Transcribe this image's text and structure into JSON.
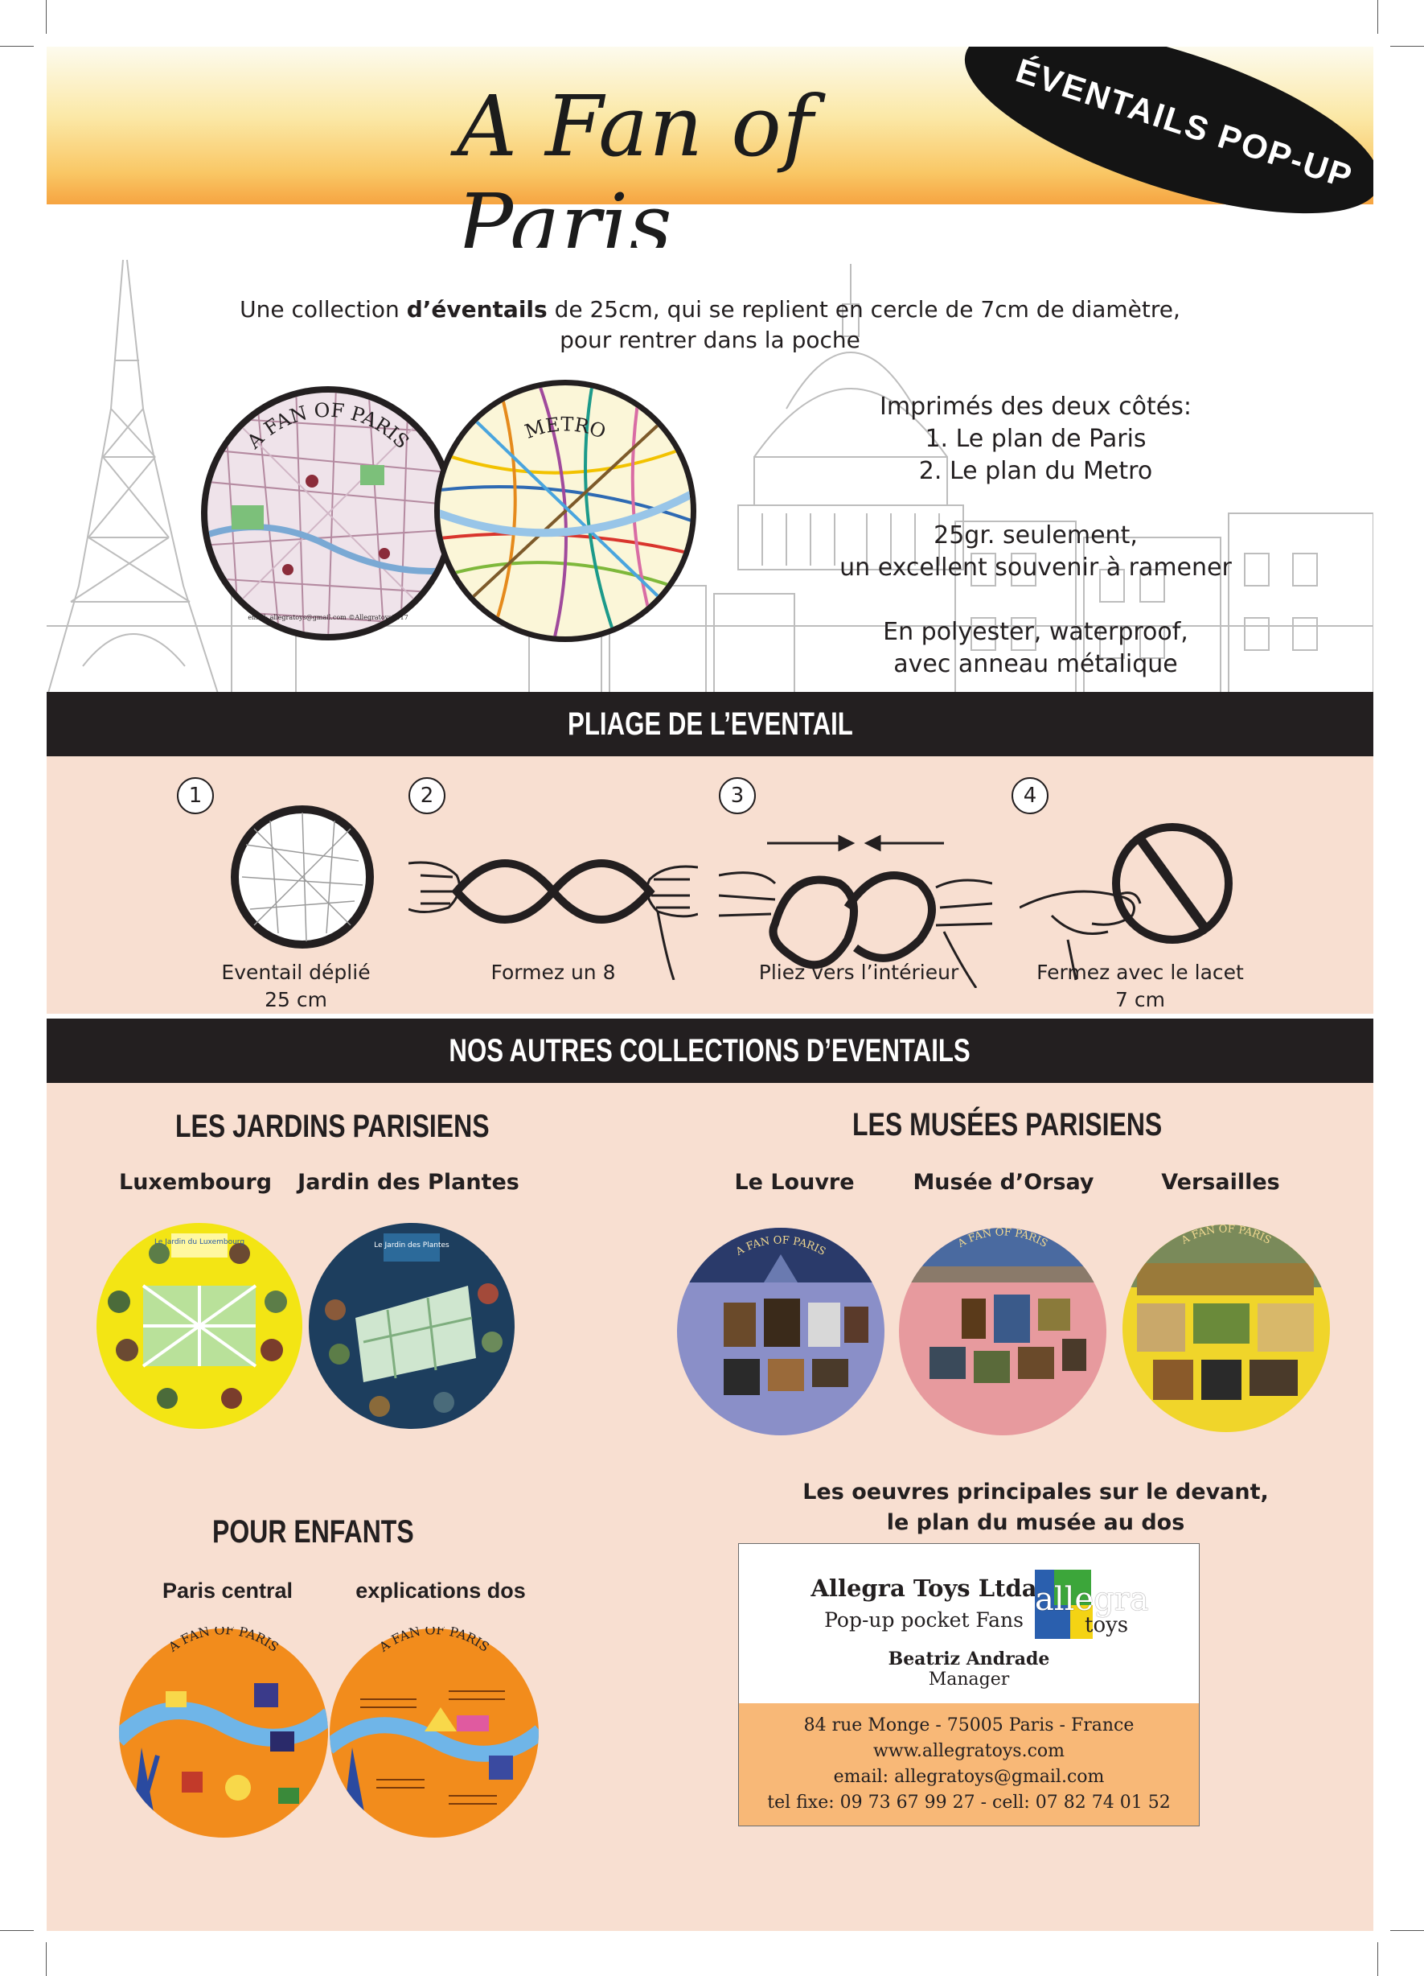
{
  "header": {
    "title": "A Fan of Paris",
    "badge": "ÉVENTAILS POP-UP"
  },
  "intro": {
    "line1_pre": "Une collection ",
    "line1_bold": "d’éventails",
    "line1_post": " de 25cm, qui se replient en cercle de 7cm de diamètre,",
    "line2": "pour rentrer dans la poche",
    "map_fan_label": "A FAN OF PARIS",
    "metro_fan_label": "METRO",
    "map_fan_footer": "email: allegratoys@gmail.com   ©Allegratoys2017",
    "right": [
      "Imprimés des deux côtés:",
      "1. Le plan de Paris",
      "2. Le plan du Metro",
      "",
      "25gr. seulement,",
      "un excellent souvenir à ramener",
      "",
      "En polyester, waterproof,",
      "avec anneau métalique"
    ]
  },
  "folding": {
    "title": "PLIAGE DE L’EVENTAIL",
    "steps": [
      {
        "num": "1",
        "caption_l1": "Eventail déplié",
        "caption_l2": "25 cm"
      },
      {
        "num": "2",
        "caption_l1": "Formez un  8",
        "caption_l2": ""
      },
      {
        "num": "3",
        "caption_l1": "Pliez vers l’intérieur",
        "caption_l2": ""
      },
      {
        "num": "4",
        "caption_l1": "Fermez avec le lacet",
        "caption_l2": "7 cm"
      }
    ]
  },
  "collections": {
    "title": "NOS AUTRES COLLECTIONS D’EVENTAILS",
    "jardins": {
      "title": "LES JARDINS PARISIENS",
      "items": [
        "Luxembourg",
        "Jardin des Plantes"
      ],
      "fan1_label": "Le Jardin du Luxembourg",
      "fan2_label": "Le Jardin des Plantes"
    },
    "musees": {
      "title": "LES MUSÉES PARISIENS",
      "items": [
        "Le Louvre",
        "Musée d’Orsay",
        "Versailles"
      ],
      "caption_l1": "Les oeuvres principales sur le devant,",
      "caption_l2": "le plan du musée au dos",
      "fan_label": "A FAN OF PARIS"
    },
    "enfants": {
      "title": "POUR ENFANTS",
      "items": [
        "Paris central",
        "explications dos"
      ],
      "fan_label": "A FAN OF PARIS"
    }
  },
  "card": {
    "company": "Allegra Toys Ltda",
    "tagline": "Pop-up pocket Fans",
    "logo_word": "allegra",
    "logo_sub": "toys",
    "person": "Beatriz Andrade",
    "role": "Manager",
    "address": "84 rue Monge - 75005  Paris - France",
    "web": "www.allegratoys.com",
    "email": "email: allegratoys@gmail.com",
    "phone": "tel fixe: 09 73 67 99 27  -  cell: 07 82 74 01 52"
  },
  "colors": {
    "band": "#231f20",
    "pink_panel": "#f8dfd1",
    "header_top": "#fdfbee",
    "header_bottom": "#f6a441",
    "card_lower": "#f8b877"
  }
}
